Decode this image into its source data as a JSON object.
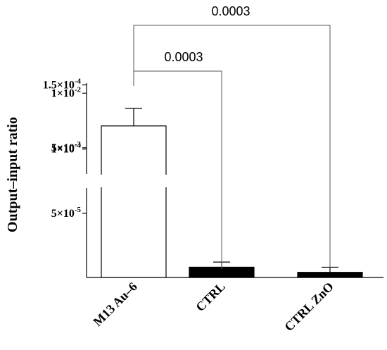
{
  "chart_data": {
    "type": "bar",
    "ylabel": "Output–input ratio",
    "y_axis_break": true,
    "y_ticks_upper": [
      {
        "value": 0.005,
        "label_base": "5×10",
        "label_exp": "-3"
      },
      {
        "value": 0.01,
        "label_base": "1×10",
        "label_exp": "-2"
      }
    ],
    "y_ticks_lower": [
      {
        "value": 5e-05,
        "label_base": "5×10",
        "label_exp": "-5"
      },
      {
        "value": 0.0001,
        "label_base": "1×10",
        "label_exp": "-4"
      },
      {
        "value": 0.00015,
        "label_base": "1.5×10",
        "label_exp": "-4"
      }
    ],
    "categories": [
      "M13 Au–6",
      "CTRL",
      "CTRL ZnO"
    ],
    "values": [
      0.007,
      8e-06,
      4e-06
    ],
    "errors": [
      0.0016,
      4e-06,
      4e-06
    ],
    "bar_fill": [
      "#ffffff",
      "#000000",
      "#000000"
    ],
    "significance": [
      {
        "from": 0,
        "to": 1,
        "label": "0.0003"
      },
      {
        "from": 0,
        "to": 2,
        "label": "0.0003"
      }
    ]
  }
}
